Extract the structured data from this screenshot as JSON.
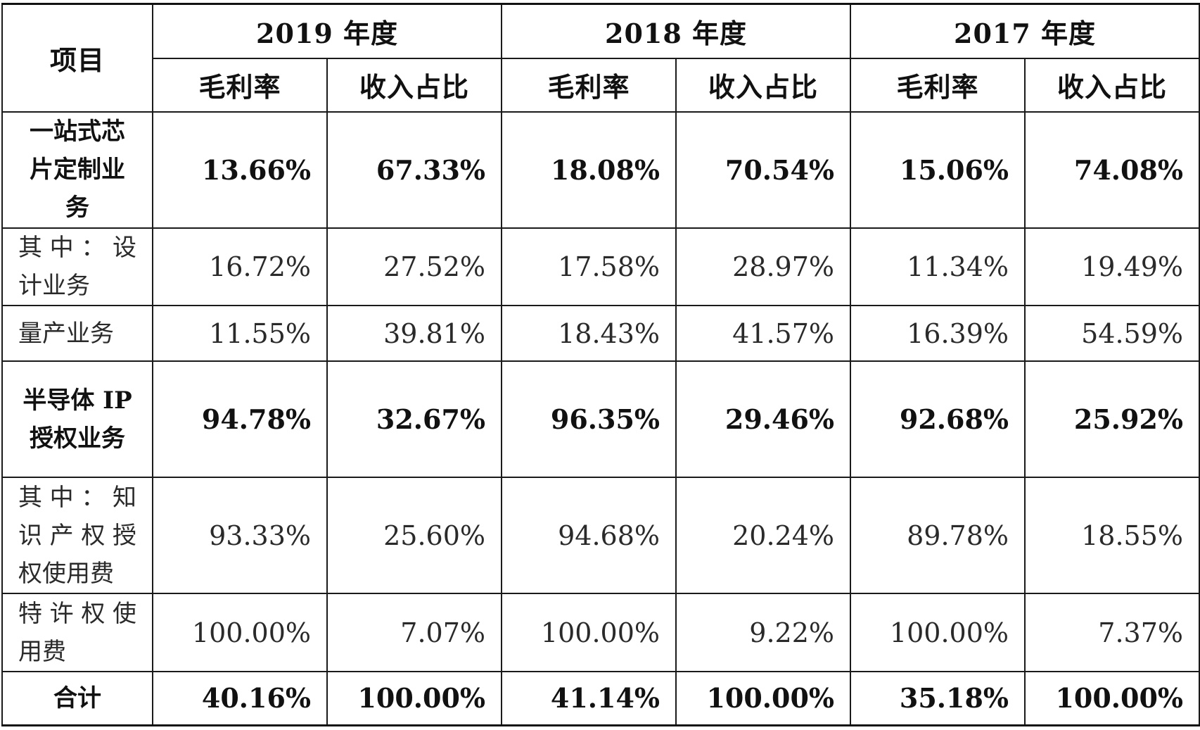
{
  "table": {
    "header_item": "项目",
    "years": [
      "2019 年度",
      "2018 年度",
      "2017 年度"
    ],
    "subheaders": [
      "毛利率",
      "收入占比"
    ],
    "rows": [
      {
        "label": "一站式芯片定制业务",
        "values": [
          "13.66%",
          "67.33%",
          "18.08%",
          "70.54%",
          "15.06%",
          "74.08%"
        ],
        "bold": true
      },
      {
        "label": "其中：设计业务",
        "values": [
          "16.72%",
          "27.52%",
          "17.58%",
          "28.97%",
          "11.34%",
          "19.49%"
        ],
        "bold": false
      },
      {
        "label": "量产业务",
        "values": [
          "11.55%",
          "39.81%",
          "18.43%",
          "41.57%",
          "16.39%",
          "54.59%"
        ],
        "bold": false
      },
      {
        "label": "半导体 IP 授权业务",
        "values": [
          "94.78%",
          "32.67%",
          "96.35%",
          "29.46%",
          "92.68%",
          "25.92%"
        ],
        "bold": true
      },
      {
        "label": "其中：知识产权授权使用费",
        "values": [
          "93.33%",
          "25.60%",
          "94.68%",
          "20.24%",
          "89.78%",
          "18.55%"
        ],
        "bold": false
      },
      {
        "label": "特许权使用费",
        "values": [
          "100.00%",
          "7.07%",
          "100.00%",
          "9.22%",
          "100.00%",
          "7.37%"
        ],
        "bold": false
      },
      {
        "label": "合计",
        "values": [
          "40.16%",
          "100.00%",
          "41.14%",
          "100.00%",
          "35.18%",
          "100.00%"
        ],
        "bold": true
      }
    ]
  }
}
